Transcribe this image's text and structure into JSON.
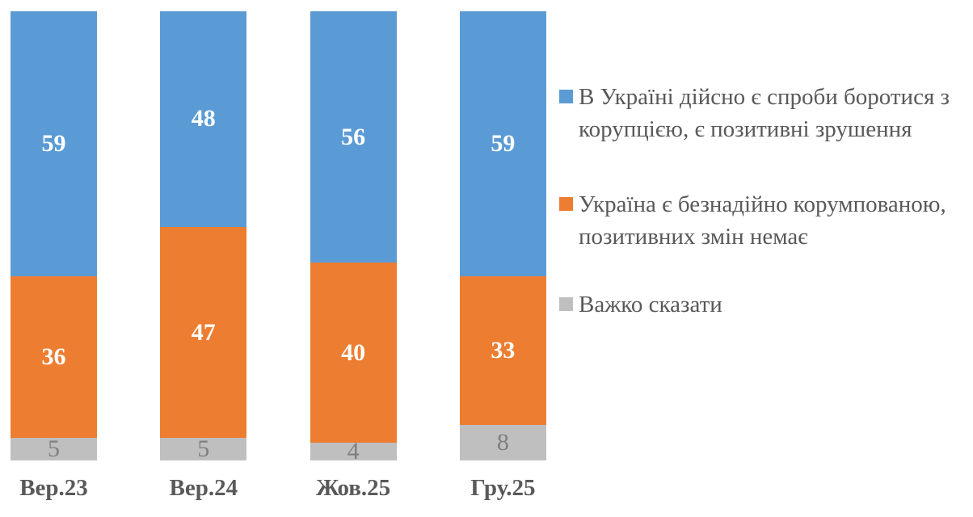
{
  "chart_data": {
    "type": "bar",
    "stacked": true,
    "orientation": "vertical",
    "title": "",
    "categories": [
      "Вер.23",
      "Вер.24",
      "Жов.25",
      "Гру.25"
    ],
    "series": [
      {
        "name": "В Україні дійсно є спроби боротися з корупцією, є позитивні зрушення",
        "legend_lines": [
          "В Україні дійсно є спроби боротися з",
          "корупцією, є позитивні зрушення"
        ],
        "color": "#5B9BD5",
        "label_color": "#FFFFFF",
        "label_bold": true,
        "values": [
          59,
          48,
          56,
          59
        ]
      },
      {
        "name": "Україна є безнадійно корумпованою, позитивних змін немає",
        "legend_lines": [
          "Україна є безнадійно корумпованою,",
          "позитивних змін немає"
        ],
        "color": "#ED7D31",
        "label_color": "#FFFFFF",
        "label_bold": true,
        "values": [
          36,
          47,
          40,
          33
        ]
      },
      {
        "name": "Важко сказати",
        "legend_lines": [
          "Важко сказати"
        ],
        "color": "#BFBFBF",
        "label_color": "#7F7F7F",
        "label_bold": false,
        "values": [
          5,
          5,
          4,
          8
        ]
      }
    ],
    "ylim": [
      0,
      100
    ],
    "grid": false,
    "data_labels": true,
    "legend_position": "right",
    "axis_label_color": "#595959",
    "legend_text_color": "#595959"
  }
}
